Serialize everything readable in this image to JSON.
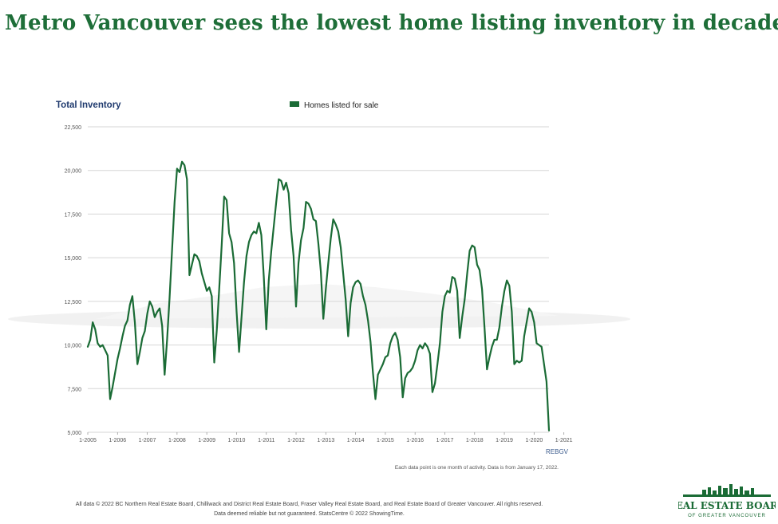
{
  "headline": "Metro Vancouver sees the lowest home listing inventory in decades",
  "source_tag": "REBGV",
  "note": "Each data point is one month of activity. Data is from January 17, 2022.",
  "footer": {
    "line1": "All data © 2022 BC Northern Real Estate Board, Chilliwack and District Real Estate Board, Fraser Valley Real Estate Board, and Real Estate Board of Greater Vancouver. All rights reserved.",
    "line2": "Data deemed reliable but not guaranteed. StatsCentre © 2022 ShowingTime."
  },
  "logo": {
    "name": "REAL ESTATE BOARD",
    "sub": "OF GREATER VANCOUVER"
  },
  "colors": {
    "series": "#1a6b35",
    "headline": "#1e6e38",
    "ylabel": "#1f3a6e",
    "grid": "#d6d6d6"
  },
  "chart_data": {
    "type": "line",
    "title": "Total Inventory",
    "legend": "top-center",
    "grid": true,
    "ylim": [
      5000,
      22500
    ],
    "yticks": [
      "5,000",
      "7,500",
      "10,000",
      "12,500",
      "15,000",
      "17,500",
      "20,000",
      "22,500"
    ],
    "ytick_values": [
      5000,
      7500,
      10000,
      12500,
      15000,
      17500,
      20000,
      22500
    ],
    "xticks": [
      "1-2005",
      "1-2006",
      "1-2007",
      "1-2008",
      "1-2009",
      "1-2010",
      "1-2011",
      "1-2012",
      "1-2013",
      "1-2014",
      "1-2015",
      "1-2016",
      "1-2017",
      "1-2018",
      "1-2019",
      "1-2020",
      "1-2021"
    ],
    "x_start": "1-2005",
    "x_step": "1 month",
    "series": [
      {
        "name": "Homes listed for sale",
        "values": [
          9900,
          10300,
          11300,
          10900,
          10100,
          9900,
          10000,
          9700,
          9400,
          6900,
          7600,
          8400,
          9200,
          9800,
          10500,
          11100,
          11400,
          12300,
          12800,
          11300,
          8900,
          9600,
          10400,
          10800,
          11800,
          12500,
          12200,
          11600,
          11900,
          12100,
          11100,
          8300,
          10300,
          12700,
          15500,
          18200,
          20100,
          19900,
          20500,
          20300,
          19500,
          14000,
          14600,
          15200,
          15100,
          14800,
          14100,
          13600,
          13100,
          13300,
          12800,
          9000,
          10800,
          13200,
          15700,
          18500,
          18300,
          16400,
          15900,
          14700,
          11900,
          9600,
          11600,
          13600,
          15100,
          15900,
          16300,
          16500,
          16400,
          17000,
          16300,
          13900,
          10900,
          13700,
          15400,
          16800,
          18200,
          19500,
          19400,
          18900,
          19300,
          18700,
          16600,
          15100,
          12200,
          14700,
          16000,
          16700,
          18200,
          18100,
          17800,
          17200,
          17100,
          15800,
          14200,
          11500,
          13200,
          14700,
          16100,
          17200,
          16900,
          16500,
          15600,
          14100,
          12600,
          10500,
          12400,
          13300,
          13600,
          13700,
          13500,
          12800,
          12300,
          11400,
          10200,
          8400,
          6900,
          8300,
          8600,
          8900,
          9300,
          9400,
          10100,
          10500,
          10700,
          10300,
          9300,
          7000,
          8100,
          8400,
          8500,
          8700,
          9100,
          9700,
          10000,
          9800,
          10100,
          9900,
          9500,
          7300,
          7800,
          8900,
          10100,
          11900,
          12800,
          13100,
          13000,
          13900,
          13800,
          13100,
          10400,
          11600,
          12600,
          14100,
          15400,
          15700,
          15600,
          14600,
          14300,
          13200,
          11000,
          8600,
          9300,
          9900,
          10300,
          10300,
          11000,
          12200,
          13100,
          13700,
          13400,
          11900,
          8900,
          9100,
          9000,
          9100,
          10500,
          11300,
          12100,
          11900,
          11300,
          10100,
          10000,
          9900,
          8900,
          7900,
          5100
        ]
      }
    ]
  }
}
